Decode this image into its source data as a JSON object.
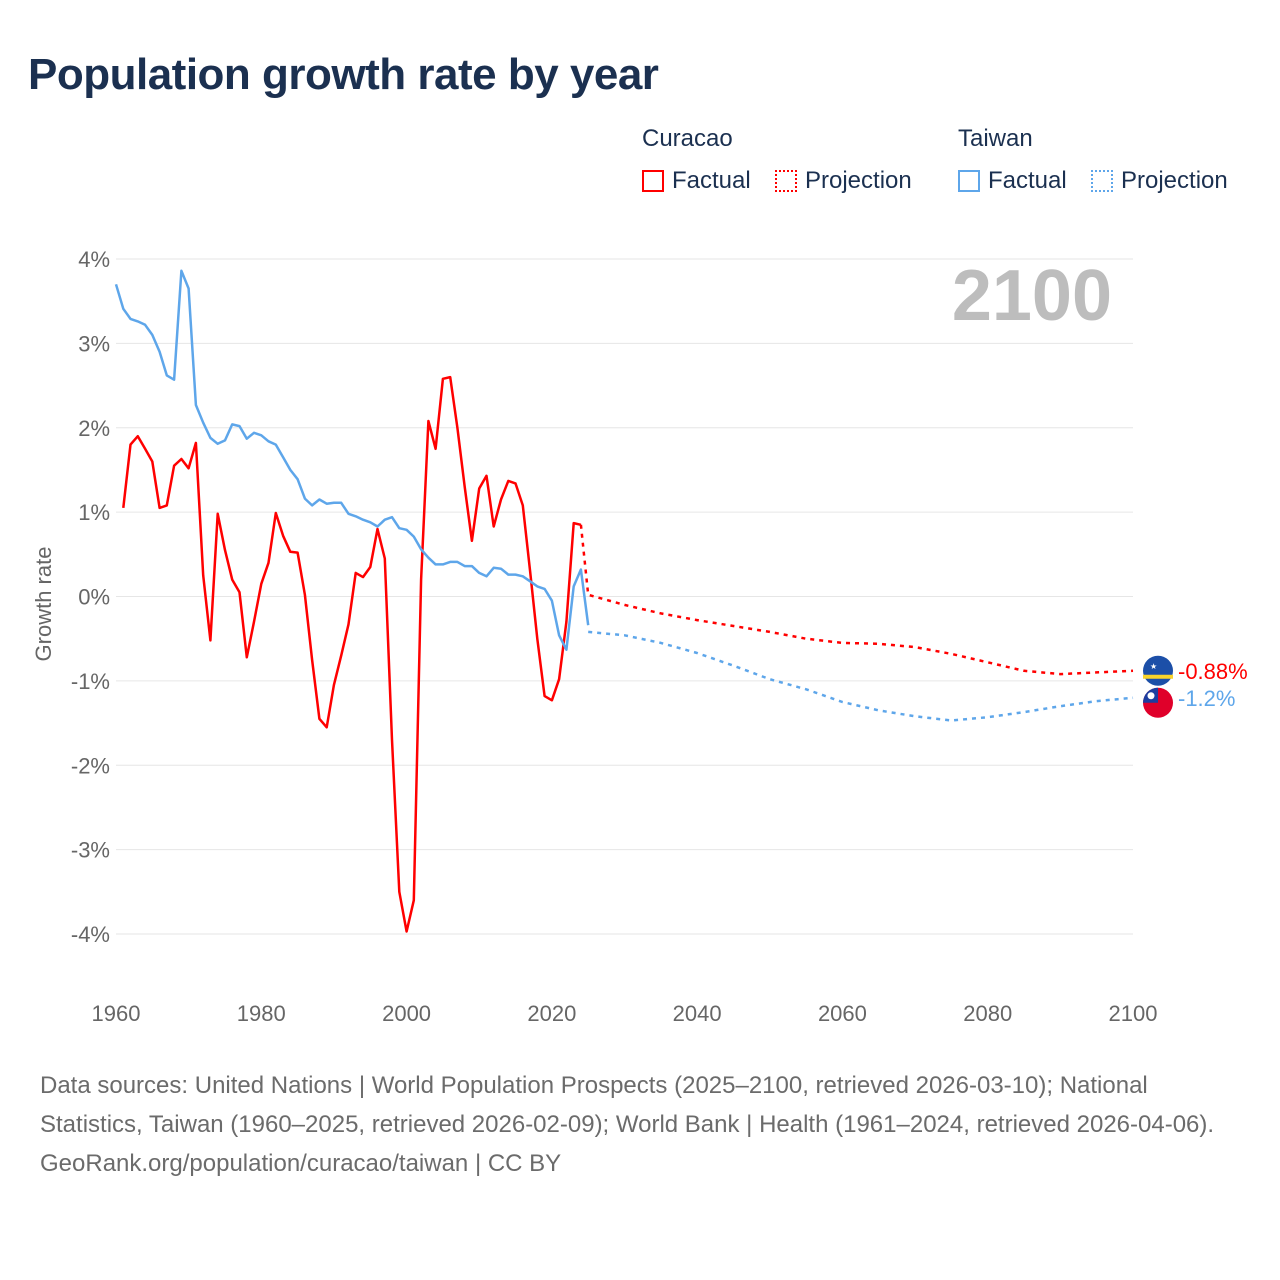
{
  "title": "Population growth rate by year",
  "legend": {
    "groups": [
      {
        "name": "Curacao",
        "factual": "Factual",
        "projection": "Projection",
        "color": "#ff0000"
      },
      {
        "name": "Taiwan",
        "factual": "Factual",
        "projection": "Projection",
        "color": "#5ea6ea"
      }
    ]
  },
  "current_year": "2100",
  "chart_data": {
    "type": "line",
    "title": "Population growth rate by year",
    "xlabel": "",
    "ylabel": "Growth rate",
    "xlim": [
      1960,
      2100
    ],
    "ylim": [
      -4,
      4
    ],
    "grid": true,
    "legend_placement": "top-right",
    "x_ticks": [
      "1960",
      "1980",
      "2000",
      "2020",
      "2040",
      "2060",
      "2080",
      "2100"
    ],
    "y_ticks": [
      "4%",
      "3%",
      "2%",
      "1%",
      "0%",
      "-1%",
      "-2%",
      "-3%",
      "-4%"
    ],
    "series": [
      {
        "name": "Curacao Factual",
        "color": "#ff0000",
        "dashed": false,
        "x": [
          1961,
          1962,
          1963,
          1964,
          1965,
          1966,
          1967,
          1968,
          1969,
          1970,
          1971,
          1972,
          1973,
          1974,
          1975,
          1976,
          1977,
          1978,
          1979,
          1980,
          1981,
          1982,
          1983,
          1984,
          1985,
          1986,
          1987,
          1988,
          1989,
          1990,
          1991,
          1992,
          1993,
          1994,
          1995,
          1996,
          1997,
          1998,
          1999,
          2000,
          2001,
          2002,
          2003,
          2004,
          2005,
          2006,
          2007,
          2008,
          2009,
          2010,
          2011,
          2012,
          2013,
          2014,
          2015,
          2016,
          2017,
          2018,
          2019,
          2020,
          2021,
          2022,
          2023,
          2024
        ],
        "y": [
          1.05,
          1.8,
          1.9,
          1.75,
          1.6,
          1.05,
          1.08,
          1.55,
          1.63,
          1.52,
          1.82,
          0.25,
          -0.52,
          0.98,
          0.55,
          0.2,
          0.05,
          -0.72,
          -0.3,
          0.15,
          0.4,
          0.99,
          0.72,
          0.53,
          0.52,
          0.02,
          -0.75,
          -1.45,
          -1.55,
          -1.05,
          -0.7,
          -0.33,
          0.28,
          0.23,
          0.35,
          0.8,
          0.45,
          -1.7,
          -3.5,
          -3.97,
          -3.6,
          0.2,
          2.08,
          1.75,
          2.58,
          2.6,
          2.0,
          1.3,
          0.66,
          1.28,
          1.43,
          0.83,
          1.15,
          1.37,
          1.34,
          1.08,
          0.3,
          -0.5,
          -1.18,
          -1.23,
          -0.98,
          -0.3,
          0.87,
          0.85
        ]
      },
      {
        "name": "Curacao Projection",
        "color": "#ff0000",
        "dashed": true,
        "x": [
          2024,
          2025,
          2030,
          2035,
          2040,
          2045,
          2050,
          2055,
          2060,
          2065,
          2070,
          2075,
          2080,
          2085,
          2090,
          2095,
          2100
        ],
        "y": [
          0.85,
          0.02,
          -0.1,
          -0.2,
          -0.28,
          -0.35,
          -0.42,
          -0.5,
          -0.55,
          -0.56,
          -0.6,
          -0.68,
          -0.78,
          -0.88,
          -0.92,
          -0.9,
          -0.88
        ]
      },
      {
        "name": "Taiwan Factual",
        "color": "#5ea6ea",
        "dashed": false,
        "x": [
          1960,
          1961,
          1962,
          1963,
          1964,
          1965,
          1966,
          1967,
          1968,
          1969,
          1970,
          1971,
          1972,
          1973,
          1974,
          1975,
          1976,
          1977,
          1978,
          1979,
          1980,
          1981,
          1982,
          1983,
          1984,
          1985,
          1986,
          1987,
          1988,
          1989,
          1990,
          1991,
          1992,
          1993,
          1994,
          1995,
          1996,
          1997,
          1998,
          1999,
          2000,
          2001,
          2002,
          2003,
          2004,
          2005,
          2006,
          2007,
          2008,
          2009,
          2010,
          2011,
          2012,
          2013,
          2014,
          2015,
          2016,
          2017,
          2018,
          2019,
          2020,
          2021,
          2022,
          2023,
          2024,
          2025
        ],
        "y": [
          3.7,
          3.41,
          3.29,
          3.26,
          3.22,
          3.1,
          2.9,
          2.62,
          2.57,
          3.86,
          3.65,
          2.27,
          2.06,
          1.88,
          1.81,
          1.85,
          2.04,
          2.02,
          1.87,
          1.94,
          1.91,
          1.84,
          1.8,
          1.65,
          1.5,
          1.39,
          1.16,
          1.08,
          1.15,
          1.1,
          1.11,
          1.11,
          0.98,
          0.95,
          0.91,
          0.88,
          0.83,
          0.91,
          0.94,
          0.81,
          0.79,
          0.71,
          0.56,
          0.46,
          0.38,
          0.38,
          0.41,
          0.41,
          0.36,
          0.36,
          0.28,
          0.24,
          0.34,
          0.33,
          0.26,
          0.26,
          0.24,
          0.18,
          0.12,
          0.09,
          -0.05,
          -0.46,
          -0.63,
          0.12,
          0.32,
          -0.34
        ]
      },
      {
        "name": "Taiwan Projection",
        "color": "#5ea6ea",
        "dashed": true,
        "x": [
          2025,
          2030,
          2035,
          2040,
          2045,
          2050,
          2055,
          2060,
          2065,
          2070,
          2075,
          2080,
          2085,
          2090,
          2095,
          2100
        ],
        "y": [
          -0.42,
          -0.46,
          -0.55,
          -0.67,
          -0.82,
          -0.98,
          -1.1,
          -1.25,
          -1.35,
          -1.42,
          -1.47,
          -1.43,
          -1.37,
          -1.3,
          -1.24,
          -1.2
        ]
      }
    ],
    "end_labels": [
      {
        "country": "Curacao",
        "value": -0.88,
        "label": "-0.88%",
        "color": "#ff0000"
      },
      {
        "country": "Taiwan",
        "value": -1.2,
        "label": "-1.2%",
        "color": "#5ea6ea"
      }
    ]
  },
  "footer": {
    "sources": "Data sources: United Nations | World Population Prospects (2025–2100, retrieved 2026-03-10); National Statistics, Taiwan (1960–2025, retrieved 2026-02-09); World Bank | Health (1961–2024, retrieved 2026-04-06).",
    "credit": "GeoRank.org/population/curacao/taiwan | CC BY"
  }
}
